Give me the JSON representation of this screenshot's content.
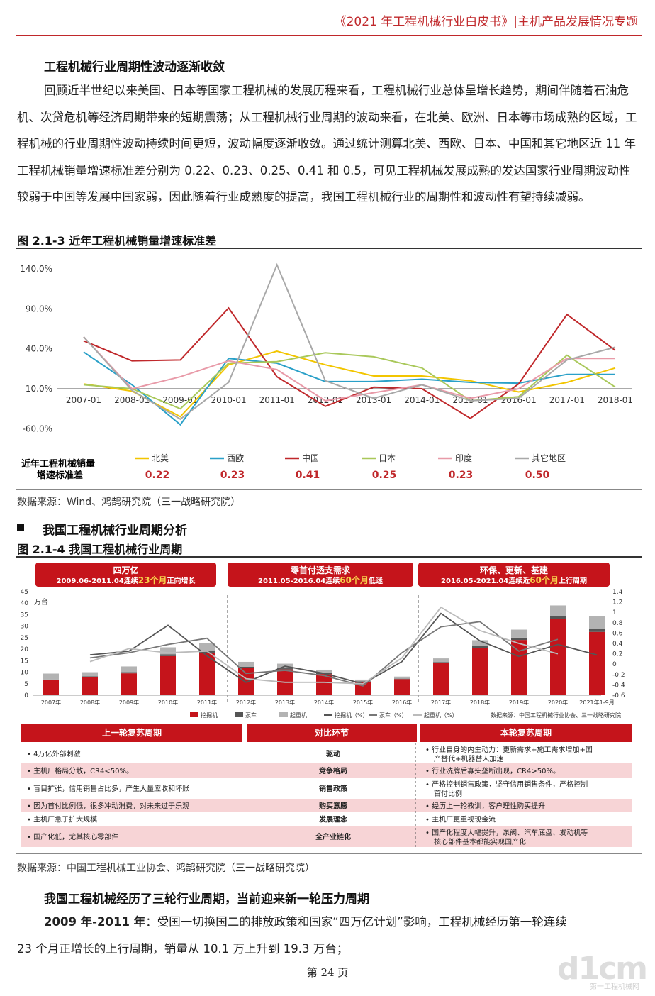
{
  "header": "《2021 年工程机械行业白皮书》|主机产品发展情况专题",
  "section1": {
    "heading": "工程机械行业周期性波动逐渐收敛",
    "paragraph": "回顾近半世纪以来美国、日本等国家工程机械的发展历程来看，工程机械行业总体呈增长趋势，期间伴随着石油危机、次贷危机等经济周期带来的短期震荡；从工程机械行业周期的波动来看，在北美、欧洲、日本等市场成熟的区域，工程机械的行业周期性波动持续时间更短，波动幅度逐渐收敛。通过统计测算北美、西欧、日本、中国和其它地区近 11 年工程机械销量增速标准差分别为 0.22、0.23、0.25、0.41 和 0.5，可见工程机械发展成熟的发达国家行业周期波动性较弱于中国等发展中国家弱，因此随着行业成熟度的提高，我国工程机械行业的周期性和波动性有望持续减弱。"
  },
  "figure1": {
    "title": "图 2.1-3  近年工程机械销量增速标准差",
    "source": "数据来源：Wind、鸿鹄研究院（三一战略研究院）",
    "std_label_line1": "近年工程机械销量",
    "std_label_line2": "增速标准差",
    "std_values": [
      "0.22",
      "0.23",
      "0.41",
      "0.25",
      "0.23",
      "0.50"
    ]
  },
  "chart_data": [
    {
      "type": "line",
      "x": [
        "2007-01",
        "2008-01",
        "2009-01",
        "2010-01",
        "2011-01",
        "2012-01",
        "2013-01",
        "2014-01",
        "2015-01",
        "2016-01",
        "2017-01",
        "2018-01"
      ],
      "yticks": [
        "140.0%",
        "90.0%",
        "40.0%",
        "-10.0%",
        "-60.0%"
      ],
      "ylim": [
        -60,
        150
      ],
      "series": [
        {
          "name": "北美",
          "color": "#f2c500",
          "values": [
            -4,
            -13,
            -45,
            20,
            37,
            20,
            6,
            6,
            0,
            -14,
            -2,
            16
          ]
        },
        {
          "name": "西欧",
          "color": "#2aa0c8",
          "values": [
            36,
            -5,
            -55,
            28,
            22,
            -1,
            -1,
            2,
            -2,
            -3,
            8,
            8
          ]
        },
        {
          "name": "中国",
          "color": "#c0282b",
          "values": [
            50,
            25,
            26,
            91,
            5,
            -32,
            -8,
            -10,
            -47,
            -4,
            83,
            38
          ]
        },
        {
          "name": "日本",
          "color": "#a9c85a",
          "values": [
            -5,
            -10,
            -35,
            22,
            24,
            35,
            30,
            16,
            -25,
            -20,
            32,
            -8
          ]
        },
        {
          "name": "印度",
          "color": "#e89aa8",
          "values": [
            55,
            -10,
            5,
            25,
            14,
            -25,
            -15,
            -5,
            -22,
            -10,
            28,
            28
          ]
        },
        {
          "name": "其它地区",
          "color": "#a8a8a8",
          "values": [
            55,
            -12,
            -48,
            -2,
            145,
            0,
            -22,
            -5,
            -25,
            -22,
            26,
            42
          ]
        }
      ]
    },
    {
      "type": "bar",
      "categories": [
        "2007年",
        "2008年",
        "2009年",
        "2010年",
        "2011年",
        "2012年",
        "2013年",
        "2014年",
        "2015年",
        "2016年",
        "2017年",
        "2018年",
        "2019年",
        "2020年",
        "2021年1-9月"
      ],
      "y_left_unit": "万台",
      "y_left_ticks": [
        "45",
        "40",
        "35",
        "30",
        "25",
        "20",
        "15",
        "10",
        "5",
        "0"
      ],
      "y_right_ticks": [
        "1.4",
        "1.2",
        "1",
        "0.8",
        "0.6",
        "0.4",
        "0.2",
        "0",
        "-0.2",
        "-0.4",
        "-0.6"
      ],
      "series": [
        {
          "name": "挖掘机",
          "values": [
            6.5,
            7.8,
            9.5,
            17,
            18.5,
            11.8,
            11.2,
            9.2,
            5.8,
            7.0,
            14.0,
            20.5,
            24.0,
            33.0,
            27.5
          ]
        },
        {
          "name": "泵车",
          "values": [
            0.3,
            0.4,
            0.5,
            0.8,
            0.9,
            0.6,
            0.5,
            0.4,
            0.2,
            0.2,
            0.4,
            0.8,
            1.0,
            1.5,
            1.2
          ]
        },
        {
          "name": "起重机",
          "values": [
            2.6,
            1.8,
            2.5,
            3.0,
            3.1,
            2.1,
            2.0,
            1.5,
            0.8,
            0.9,
            1.6,
            2.6,
            3.5,
            4.5,
            5.8
          ]
        }
      ],
      "line_series": [
        {
          "name": "挖掘机（%）",
          "color": "#555555",
          "values": [
            null,
            0.18,
            0.25,
            0.75,
            0.16,
            -0.35,
            -0.04,
            -0.18,
            -0.38,
            0.05,
            0.98,
            0.45,
            0.15,
            0.38,
            0.18
          ]
        },
        {
          "name": "泵车（%）",
          "color": "#777777",
          "values": [
            null,
            0.12,
            0.22,
            0.38,
            0.5,
            -0.18,
            -0.12,
            -0.22,
            -0.42,
            0.22,
            0.72,
            0.82,
            0.25,
            0.48,
            null
          ]
        },
        {
          "name": "起重机（%）",
          "color": "#bbbbbb",
          "values": [
            null,
            0.05,
            0.3,
            0.22,
            0.25,
            -0.28,
            -0.35,
            -0.35,
            -0.38,
            0.12,
            1.1,
            0.65,
            0.4,
            0.2,
            null
          ]
        }
      ]
    }
  ],
  "section2": {
    "heading": "我国工程机械行业周期分析",
    "fig_title": "图 2.1-4  我国工程机械行业周期",
    "source": "数据来源：中国工程机械工业协会、鸿鹄研究院（三一战略研究院）",
    "data_source_note": "数据来源：中国工程机械行业协会、三一战略研究院",
    "banners": [
      {
        "title": "四万亿",
        "sub_pre": "2009.06-2011.04连续",
        "sub_hi": "23个月",
        "sub_post": "正向增长"
      },
      {
        "title": "零首付透支需求",
        "sub_pre": "2011.05-2016.04连续",
        "sub_hi": "60个月",
        "sub_post": "低迷"
      },
      {
        "title": "环保、更新、基建",
        "sub_pre": "2016.05-2021.04连续近",
        "sub_hi": "60个月",
        "sub_post": "上行周期"
      }
    ],
    "table": {
      "headers": [
        "上一轮复苏周期",
        "对比环节",
        "本轮复苏周期"
      ],
      "rows": [
        {
          "left": "4万亿外部刺激",
          "mid": "驱动",
          "right1": "行业自身的内生动力：更新需求+施工需求增加+国",
          "right2": "产替代+机器替人加速"
        },
        {
          "left": "主机厂格局分散，CR4<50%。",
          "mid": "竞争格局",
          "right1": "行业洗牌后寡头垄断出现，CR4>50%。",
          "right2": ""
        },
        {
          "left": "盲目扩张，信用销售占比多，产生大量应收和坏账",
          "mid": "销售政策",
          "right1": "严格控制销售政策，坚守信用销售条件，严格控制",
          "right2": "首付比例"
        },
        {
          "left": "因为首付比例低，很多冲动消费，对未来过于乐观",
          "mid": "购买意愿",
          "right1": "经历上一轮教训，客户理性购买提升",
          "right2": ""
        },
        {
          "left": "主机厂急于扩大规模",
          "mid": "发展理念",
          "right1": "主机厂更重视现金流",
          "right2": ""
        },
        {
          "left": "国产化低，尤其核心零部件",
          "mid": "全产业链化",
          "right1": "国产化程度大幅提升，泵阀、汽车底盘、发动机等",
          "right2": "核心部件基本都能实现国产化"
        }
      ]
    }
  },
  "section3": {
    "heading": "我国工程机械经历了三轮行业周期，当前迎来新一轮压力周期",
    "lead": "2009 年-2011 年",
    "text_line1": "：受国一切换国二的排放政策和国家“四万亿计划”影响，工程机械经历第一轮连续",
    "text_line2": "23 个月正增长的上行周期，销量从 10.1 万上升到 19.3 万台；"
  },
  "footer": "第 24 页",
  "watermark": "d1cm",
  "watermark_sub": "第一工程机械网"
}
